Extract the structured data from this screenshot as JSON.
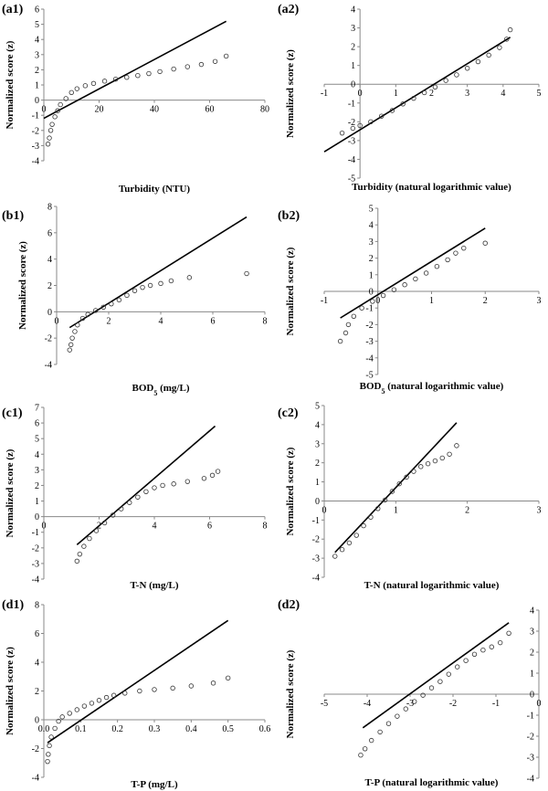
{
  "chart_data": [
    {
      "id": "a1",
      "panel_label": "(a1)",
      "type": "scatter",
      "xlabel": "Turbidity (NTU)",
      "ylabel": "Normalized score (z)",
      "xlim": [
        0,
        80
      ],
      "ylim": [
        -4,
        6
      ],
      "xticks": [
        0,
        20,
        40,
        60,
        80
      ],
      "yticks": [
        -4,
        -3,
        -2,
        -1,
        0,
        1,
        2,
        3,
        4,
        5,
        6
      ],
      "xtick_labels": [
        "0",
        "20",
        "40",
        "60",
        "80"
      ],
      "ytick_labels": [
        "-4",
        "-3",
        "-2",
        "-1",
        "0",
        "1",
        "2",
        "3",
        "4",
        "5",
        "6"
      ],
      "points": [
        [
          1.5,
          -2.9
        ],
        [
          2,
          -2.5
        ],
        [
          2.5,
          -2.0
        ],
        [
          3,
          -1.6
        ],
        [
          4,
          -1.1
        ],
        [
          5,
          -0.7
        ],
        [
          6,
          -0.3
        ],
        [
          8,
          0.1
        ],
        [
          10,
          0.5
        ],
        [
          12,
          0.75
        ],
        [
          15,
          0.95
        ],
        [
          18,
          1.1
        ],
        [
          22,
          1.25
        ],
        [
          26,
          1.38
        ],
        [
          30,
          1.5
        ],
        [
          34,
          1.62
        ],
        [
          38,
          1.75
        ],
        [
          42,
          1.88
        ],
        [
          47,
          2.05
        ],
        [
          52,
          2.2
        ],
        [
          57,
          2.35
        ],
        [
          62,
          2.55
        ],
        [
          66,
          2.9
        ]
      ],
      "fit_line": [
        [
          0,
          -1.2
        ],
        [
          66,
          5.2
        ]
      ]
    },
    {
      "id": "a2",
      "panel_label": "(a2)",
      "type": "scatter",
      "xlabel": "Turbidity (natural logarithmic value)",
      "ylabel": "Normalized score (z)",
      "xlim": [
        -1,
        5
      ],
      "ylim": [
        -5,
        4
      ],
      "xticks": [
        -1,
        0,
        1,
        2,
        3,
        4,
        5
      ],
      "yticks": [
        -5,
        -4,
        -3,
        -2,
        -1,
        0,
        1,
        2,
        3,
        4
      ],
      "xtick_labels": [
        "-1",
        "0",
        "1",
        "2",
        "3",
        "4",
        "5"
      ],
      "ytick_labels": [
        "-5",
        "-4",
        "-3",
        "-2",
        "-1",
        "0",
        "1",
        "2",
        "3",
        "4"
      ],
      "points": [
        [
          -0.5,
          -2.6
        ],
        [
          -0.2,
          -2.35
        ],
        [
          0,
          -2.2
        ],
        [
          0.3,
          -2.0
        ],
        [
          0.6,
          -1.7
        ],
        [
          0.9,
          -1.4
        ],
        [
          1.2,
          -1.05
        ],
        [
          1.5,
          -0.75
        ],
        [
          1.8,
          -0.45
        ],
        [
          2.1,
          -0.15
        ],
        [
          2.4,
          0.2
        ],
        [
          2.7,
          0.5
        ],
        [
          3.0,
          0.85
        ],
        [
          3.3,
          1.2
        ],
        [
          3.6,
          1.55
        ],
        [
          3.9,
          1.95
        ],
        [
          4.1,
          2.4
        ],
        [
          4.2,
          2.9
        ]
      ],
      "fit_line": [
        [
          -1,
          -3.6
        ],
        [
          4.2,
          2.5
        ]
      ]
    },
    {
      "id": "b1",
      "panel_label": "(b1)",
      "type": "scatter",
      "xlabel": "BOD5 (mg/L)",
      "ylabel": "Normalized score (z)",
      "xlim": [
        0,
        8
      ],
      "ylim": [
        -4,
        8
      ],
      "xticks": [
        0,
        2,
        4,
        6,
        8
      ],
      "yticks": [
        -4,
        -2,
        0,
        2,
        4,
        6,
        8
      ],
      "xtick_labels": [
        "0",
        "2",
        "4",
        "6",
        "8"
      ],
      "ytick_labels": [
        "-4",
        "-2",
        "0",
        "2",
        "4",
        "6",
        "8"
      ],
      "points": [
        [
          0.5,
          -2.9
        ],
        [
          0.55,
          -2.5
        ],
        [
          0.6,
          -2.0
        ],
        [
          0.7,
          -1.5
        ],
        [
          0.8,
          -1.0
        ],
        [
          1.0,
          -0.5
        ],
        [
          1.2,
          -0.2
        ],
        [
          1.5,
          0.1
        ],
        [
          1.8,
          0.35
        ],
        [
          2.1,
          0.6
        ],
        [
          2.4,
          0.9
        ],
        [
          2.7,
          1.25
        ],
        [
          3.0,
          1.6
        ],
        [
          3.3,
          1.85
        ],
        [
          3.6,
          2.0
        ],
        [
          4.0,
          2.15
        ],
        [
          4.4,
          2.35
        ],
        [
          5.1,
          2.6
        ],
        [
          7.3,
          2.9
        ]
      ],
      "fit_line": [
        [
          0.5,
          -1.2
        ],
        [
          7.3,
          7.2
        ]
      ]
    },
    {
      "id": "b2",
      "panel_label": "(b2)",
      "type": "scatter",
      "xlabel": "BOD5 (natural logarithmic value)",
      "ylabel": "Normalized score (z)",
      "xlim": [
        -1,
        3
      ],
      "ylim": [
        -5,
        5
      ],
      "xticks": [
        -1,
        0,
        1,
        2,
        3
      ],
      "yticks": [
        -5,
        -4,
        -3,
        -2,
        -1,
        0,
        1,
        2,
        3,
        4,
        5
      ],
      "xtick_labels": [
        "-1",
        "0",
        "1",
        "2",
        "3"
      ],
      "ytick_labels": [
        "-5",
        "-4",
        "-3",
        "-2",
        "-1",
        "0",
        "1",
        "2",
        "3",
        "4",
        "5"
      ],
      "points": [
        [
          -0.7,
          -3.0
        ],
        [
          -0.6,
          -2.5
        ],
        [
          -0.55,
          -2.0
        ],
        [
          -0.45,
          -1.5
        ],
        [
          -0.3,
          -1.0
        ],
        [
          -0.1,
          -0.6
        ],
        [
          0.1,
          -0.25
        ],
        [
          0.3,
          0.1
        ],
        [
          0.5,
          0.4
        ],
        [
          0.7,
          0.75
        ],
        [
          0.9,
          1.1
        ],
        [
          1.1,
          1.5
        ],
        [
          1.3,
          1.9
        ],
        [
          1.45,
          2.3
        ],
        [
          1.6,
          2.6
        ],
        [
          2.0,
          2.9
        ]
      ],
      "fit_line": [
        [
          -0.7,
          -1.6
        ],
        [
          2.0,
          3.8
        ]
      ]
    },
    {
      "id": "c1",
      "panel_label": "(c1)",
      "type": "scatter",
      "xlabel": "T-N (mg/L)",
      "ylabel": "Normalized score (z)",
      "xlim": [
        0,
        8
      ],
      "ylim": [
        -4,
        7
      ],
      "xticks": [
        0,
        2,
        4,
        6,
        8
      ],
      "yticks": [
        -4,
        -3,
        -2,
        -1,
        0,
        1,
        2,
        3,
        4,
        5,
        6,
        7
      ],
      "xtick_labels": [
        "0",
        "2",
        "4",
        "6",
        "8"
      ],
      "ytick_labels": [
        "-4",
        "-3",
        "-2",
        "-1",
        "0",
        "1",
        "2",
        "3",
        "4",
        "5",
        "6",
        "7"
      ],
      "points": [
        [
          1.2,
          -2.85
        ],
        [
          1.3,
          -2.4
        ],
        [
          1.45,
          -1.9
        ],
        [
          1.65,
          -1.4
        ],
        [
          1.9,
          -0.9
        ],
        [
          2.2,
          -0.4
        ],
        [
          2.5,
          0.1
        ],
        [
          2.8,
          0.5
        ],
        [
          3.1,
          0.9
        ],
        [
          3.4,
          1.25
        ],
        [
          3.7,
          1.6
        ],
        [
          4.0,
          1.85
        ],
        [
          4.3,
          2.0
        ],
        [
          4.7,
          2.1
        ],
        [
          5.2,
          2.25
        ],
        [
          5.8,
          2.45
        ],
        [
          6.1,
          2.65
        ],
        [
          6.3,
          2.9
        ]
      ],
      "fit_line": [
        [
          1.2,
          -1.8
        ],
        [
          6.2,
          5.8
        ]
      ]
    },
    {
      "id": "c2",
      "panel_label": "(c2)",
      "type": "scatter",
      "xlabel": "T-N (natural logarithmic value)",
      "ylabel": "Normalized score (z)",
      "xlim": [
        0,
        3
      ],
      "ylim": [
        -4,
        5
      ],
      "xticks": [
        0,
        1,
        2,
        3
      ],
      "yticks": [
        -4,
        -3,
        -2,
        -1,
        0,
        1,
        2,
        3,
        4,
        5
      ],
      "xtick_labels": [
        "0",
        "1",
        "2",
        "3"
      ],
      "ytick_labels": [
        "-4",
        "-3",
        "-2",
        "-1",
        "0",
        "1",
        "2",
        "3",
        "4",
        "5"
      ],
      "points": [
        [
          0.15,
          -2.9
        ],
        [
          0.25,
          -2.55
        ],
        [
          0.35,
          -2.2
        ],
        [
          0.45,
          -1.8
        ],
        [
          0.55,
          -1.3
        ],
        [
          0.65,
          -0.85
        ],
        [
          0.75,
          -0.4
        ],
        [
          0.85,
          0.05
        ],
        [
          0.95,
          0.5
        ],
        [
          1.05,
          0.9
        ],
        [
          1.15,
          1.25
        ],
        [
          1.25,
          1.55
        ],
        [
          1.35,
          1.8
        ],
        [
          1.45,
          1.95
        ],
        [
          1.55,
          2.1
        ],
        [
          1.65,
          2.25
        ],
        [
          1.75,
          2.45
        ],
        [
          1.85,
          2.9
        ]
      ],
      "fit_line": [
        [
          0.15,
          -2.7
        ],
        [
          1.85,
          4.1
        ]
      ]
    },
    {
      "id": "d1",
      "panel_label": "(d1)",
      "type": "scatter",
      "xlabel": "T-P (mg/L)",
      "ylabel": "Normalized score (z)",
      "xlim": [
        0,
        0.6
      ],
      "ylim": [
        -4,
        8
      ],
      "xticks": [
        0,
        0.1,
        0.2,
        0.3,
        0.4,
        0.5,
        0.6
      ],
      "yticks": [
        -4,
        -2,
        0,
        2,
        4,
        6,
        8
      ],
      "xtick_labels": [
        "0.0",
        "0.1",
        "0.2",
        "0.3",
        "0.4",
        "0.5",
        "0.6"
      ],
      "ytick_labels": [
        "-4",
        "-2",
        "0",
        "2",
        "4",
        "6",
        "8"
      ],
      "points": [
        [
          0.01,
          -2.9
        ],
        [
          0.012,
          -2.4
        ],
        [
          0.015,
          -1.8
        ],
        [
          0.02,
          -1.2
        ],
        [
          0.03,
          -0.6
        ],
        [
          0.04,
          -0.1
        ],
        [
          0.05,
          0.2
        ],
        [
          0.07,
          0.45
        ],
        [
          0.09,
          0.7
        ],
        [
          0.11,
          0.95
        ],
        [
          0.13,
          1.15
        ],
        [
          0.15,
          1.35
        ],
        [
          0.17,
          1.55
        ],
        [
          0.19,
          1.7
        ],
        [
          0.22,
          1.85
        ],
        [
          0.26,
          2.0
        ],
        [
          0.3,
          2.1
        ],
        [
          0.35,
          2.2
        ],
        [
          0.4,
          2.35
        ],
        [
          0.46,
          2.55
        ],
        [
          0.5,
          2.9
        ]
      ],
      "fit_line": [
        [
          0.01,
          -1.6
        ],
        [
          0.5,
          6.9
        ]
      ]
    },
    {
      "id": "d2",
      "panel_label": "(d2)",
      "type": "scatter",
      "xlabel": "T-P (natural logarithmic value)",
      "ylabel": "Normalized score (z)",
      "xlim": [
        -5,
        0
      ],
      "ylim": [
        -4,
        4
      ],
      "xticks": [
        -5,
        -4,
        -3,
        -2,
        -1,
        0
      ],
      "yticks": [
        -4,
        -3,
        -2,
        -1,
        0,
        1,
        2,
        3,
        4
      ],
      "xtick_labels": [
        "-5",
        "-4",
        "-3",
        "-2",
        "-1",
        "0"
      ],
      "ytick_labels": [
        "-4",
        "-3",
        "-2",
        "-1",
        "0",
        "1",
        "2",
        "3",
        "4"
      ],
      "points": [
        [
          -4.15,
          -2.9
        ],
        [
          -4.05,
          -2.6
        ],
        [
          -3.9,
          -2.2
        ],
        [
          -3.7,
          -1.8
        ],
        [
          -3.5,
          -1.4
        ],
        [
          -3.3,
          -1.05
        ],
        [
          -3.1,
          -0.7
        ],
        [
          -2.9,
          -0.35
        ],
        [
          -2.7,
          -0.05
        ],
        [
          -2.5,
          0.3
        ],
        [
          -2.3,
          0.6
        ],
        [
          -2.1,
          0.95
        ],
        [
          -1.9,
          1.3
        ],
        [
          -1.7,
          1.6
        ],
        [
          -1.5,
          1.9
        ],
        [
          -1.3,
          2.1
        ],
        [
          -1.1,
          2.25
        ],
        [
          -0.9,
          2.45
        ],
        [
          -0.7,
          2.9
        ]
      ],
      "fit_line": [
        [
          -4.1,
          -1.6
        ],
        [
          -0.7,
          3.4
        ]
      ]
    }
  ]
}
